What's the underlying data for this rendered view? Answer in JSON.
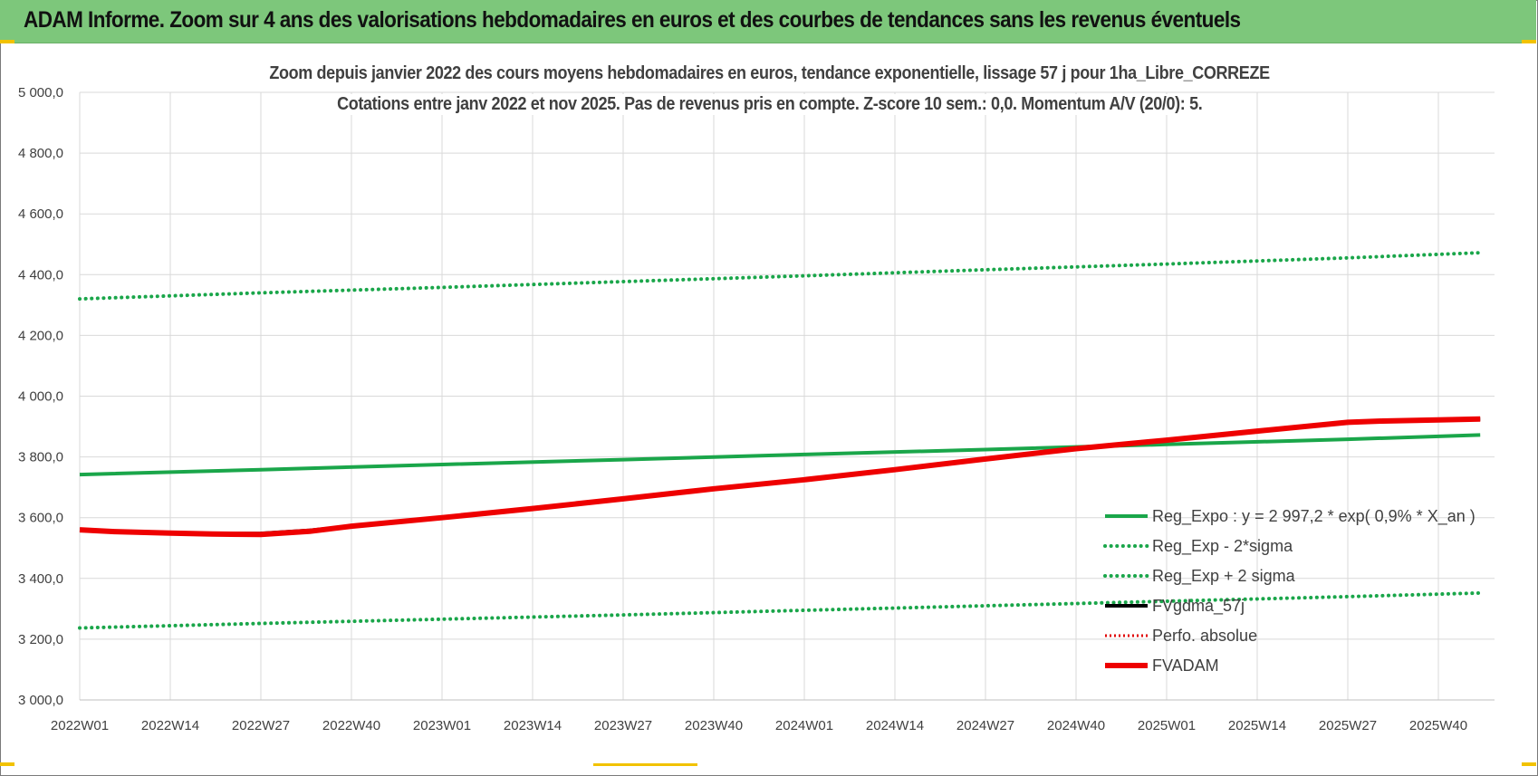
{
  "banner": {
    "title": "ADAM Informe. Zoom sur 4 ans des valorisations hebdomadaires en euros et des courbes de tendances sans les revenus éventuels"
  },
  "colors": {
    "banner_bg": "#7dc77b",
    "reg_expo": "#1aa64a",
    "band": "#1aa64a",
    "fvgdma": "#000000",
    "perfo": "#e00000",
    "fvadam": "#ee0000",
    "grid": "#d9d9d9"
  },
  "chart_data": {
    "type": "line",
    "title": "Zoom depuis janvier 2022 des cours moyens hebdomadaires en euros, tendance exponentielle, lissage 57 j pour 1ha_Libre_CORREZE",
    "subtitle": "Cotations entre janv 2022 et nov 2025. Pas de revenus pris en compte. Z-score 10 sem.: 0,0. Momentum A/V (20/0): 5.",
    "ylim": [
      3000,
      5000
    ],
    "y_ticks": [
      "3 000,0",
      "3 200,0",
      "3 400,0",
      "3 600,0",
      "3 800,0",
      "4 000,0",
      "4 200,0",
      "4 400,0",
      "4 600,0",
      "4 800,0",
      "5 000,0"
    ],
    "x_ticks": [
      "2022W01",
      "2022W14",
      "2022W27",
      "2022W40",
      "2023W01",
      "2023W14",
      "2023W27",
      "2023W40",
      "2024W01",
      "2024W14",
      "2024W27",
      "2024W40",
      "2025W01",
      "2025W14",
      "2025W27",
      "2025W40"
    ],
    "grid": true,
    "legend_position": "bottom-right",
    "series": [
      {
        "name": "Reg_Expo : y = 2 997,2 * exp( 0,9% *  X_an )",
        "style": "solid",
        "x": [
          "2022W01",
          "2022W27",
          "2023W01",
          "2023W27",
          "2024W01",
          "2024W27",
          "2025W01",
          "2025W27",
          "2025W46"
        ],
        "values": [
          3742,
          3758,
          3775,
          3791,
          3808,
          3824,
          3841,
          3858,
          3872
        ]
      },
      {
        "name": "Reg_Exp - 2*sigma",
        "style": "dotted",
        "x": [
          "2022W01",
          "2022W27",
          "2023W01",
          "2023W27",
          "2024W01",
          "2024W27",
          "2025W01",
          "2025W27",
          "2025W46"
        ],
        "values": [
          3237,
          3252,
          3266,
          3280,
          3295,
          3310,
          3325,
          3340,
          3352
        ]
      },
      {
        "name": "Reg_Exp + 2 sigma",
        "style": "dotted",
        "x": [
          "2022W01",
          "2022W27",
          "2023W01",
          "2023W27",
          "2024W01",
          "2024W27",
          "2025W01",
          "2025W27",
          "2025W46"
        ],
        "values": [
          4320,
          4340,
          4358,
          4377,
          4396,
          4416,
          4435,
          4455,
          4472
        ]
      },
      {
        "name": "FVgdma_57j",
        "style": "solid-thin",
        "x": [
          "2022W01",
          "2022W06",
          "2022W14",
          "2022W20",
          "2022W27",
          "2022W34",
          "2022W40",
          "2023W01",
          "2023W14",
          "2023W27",
          "2023W40",
          "2024W01",
          "2024W14",
          "2024W27",
          "2024W40",
          "2025W01",
          "2025W14",
          "2025W27",
          "2025W32",
          "2025W40",
          "2025W46"
        ],
        "values": [
          3560,
          3555,
          3550,
          3547,
          3548,
          3558,
          3572,
          3600,
          3630,
          3662,
          3695,
          3725,
          3758,
          3793,
          3827,
          3855,
          3885,
          3912,
          3918,
          3922,
          3925
        ]
      },
      {
        "name": "Perfo. absolue",
        "style": "dotted",
        "x": [],
        "values": []
      },
      {
        "name": "FVADAM",
        "style": "solid-thick",
        "x": [
          "2022W01",
          "2022W06",
          "2022W14",
          "2022W20",
          "2022W27",
          "2022W34",
          "2022W40",
          "2023W01",
          "2023W14",
          "2023W27",
          "2023W40",
          "2024W01",
          "2024W14",
          "2024W27",
          "2024W40",
          "2025W01",
          "2025W14",
          "2025W27",
          "2025W32",
          "2025W40",
          "2025W46"
        ],
        "values": [
          3560,
          3554,
          3549,
          3546,
          3545,
          3555,
          3572,
          3600,
          3630,
          3662,
          3695,
          3725,
          3758,
          3793,
          3827,
          3855,
          3885,
          3914,
          3918,
          3922,
          3925
        ]
      }
    ]
  }
}
